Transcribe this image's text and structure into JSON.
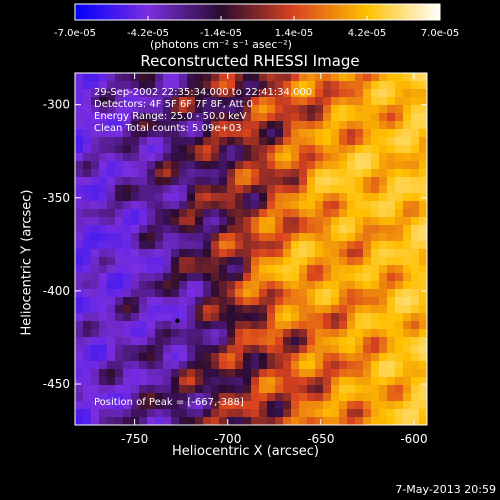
{
  "chart_data": {
    "type": "heatmap",
    "title": "Reconstructed RHESSI Image",
    "xlabel": "Heliocentric X (arcsec)",
    "ylabel": "Heliocentric Y (arcsec)",
    "xlim": [
      -782,
      -593
    ],
    "ylim": [
      -472,
      -283
    ],
    "x_ticks": [
      "-750",
      "-700",
      "-650",
      "-600"
    ],
    "x_tick_values": [
      -750,
      -700,
      -650,
      -600
    ],
    "y_ticks": [
      "-300",
      "-350",
      "-400",
      "-450"
    ],
    "y_tick_values": [
      -300,
      -350,
      -400,
      -450
    ],
    "colorbar": {
      "ticks": [
        "-7.0e-05",
        "-4.2e-05",
        "-1.4e-05",
        "1.4e-05",
        "4.2e-05",
        "7.0e-05"
      ],
      "tick_values": [
        -7e-05,
        -4.2e-05,
        -1.4e-05,
        1.4e-05,
        4.2e-05,
        7e-05
      ],
      "range": [
        -7e-05,
        7e-05
      ],
      "units": "(photons cm⁻² s⁻¹ asec⁻²)",
      "colors": [
        "#0000ff",
        "#7a2ee0",
        "#2a0b30",
        "#d9431f",
        "#ffc000",
        "#ffffff"
      ]
    },
    "annotations": [
      "29-Sep-2002 22:35:34.000 to 22:41:34.000",
      "Detectors: 4F 5F 6F 7F 8F, Att 0",
      "Energy Range: 25.0 - 50.0 keV",
      "Clean     Total counts: 5.09e+03"
    ],
    "peak_label": "Position of Peak = [-667,-388]",
    "peak": [
      -667,
      -388
    ],
    "min_marker": [
      -727,
      -416
    ]
  },
  "footer": {
    "date_stamp": "7-May-2013 20:59"
  }
}
